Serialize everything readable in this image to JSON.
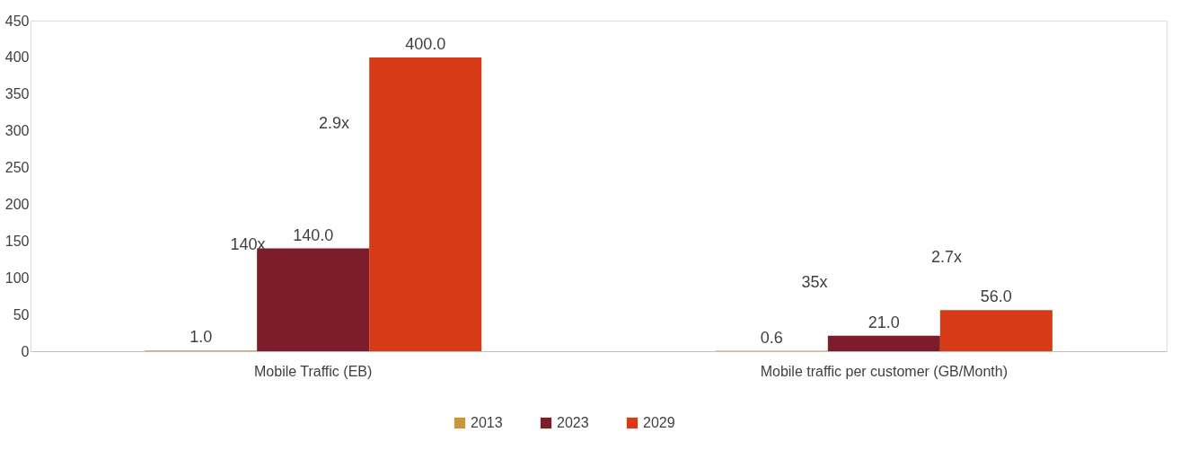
{
  "chart_data": {
    "type": "bar",
    "categories": [
      "Mobile Traffic (EB)",
      "Mobile traffic per customer (GB/Month)"
    ],
    "series": [
      {
        "name": "2013",
        "color": "#c9973b",
        "values": [
          1.0,
          0.6
        ],
        "value_labels": [
          "1.0",
          "0.6"
        ]
      },
      {
        "name": "2023",
        "color": "#7d1c2b",
        "values": [
          140.0,
          21.0
        ],
        "value_labels": [
          "140.0",
          "21.0"
        ]
      },
      {
        "name": "2029",
        "color": "#d63a16",
        "values": [
          400.0,
          56.0
        ],
        "value_labels": [
          "400.0",
          "56.0"
        ]
      }
    ],
    "ylim": [
      0,
      450
    ],
    "yticks": [
      0,
      50,
      100,
      150,
      200,
      250,
      300,
      350,
      400,
      450
    ],
    "grid": false,
    "legend": "bottom",
    "annotations": [
      "140x",
      "2.9x",
      "35x",
      "2.7x"
    ]
  }
}
